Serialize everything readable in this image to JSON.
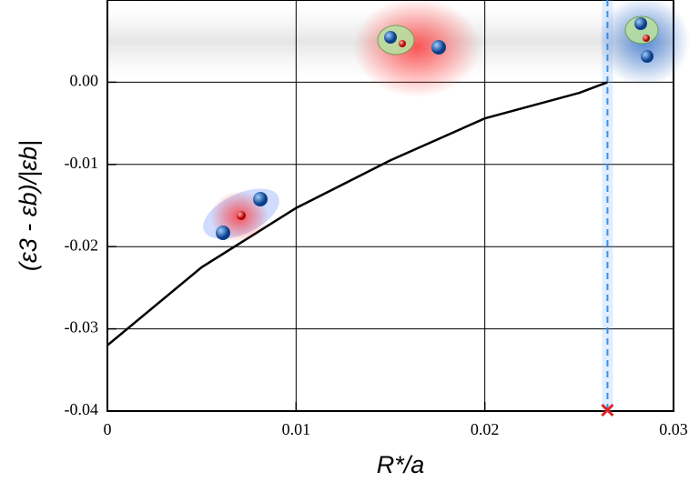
{
  "chart_data": {
    "type": "line",
    "x_label": "R*/a",
    "y_label": "(ε3 - εb)/|εb|",
    "series": [
      {
        "color": "#000000",
        "x": [
          0,
          0.005,
          0.01,
          0.015,
          0.02,
          0.025,
          0.0265
        ],
        "values": [
          -0.032,
          -0.0225,
          -0.0153,
          -0.0095,
          -0.0044,
          -0.0013,
          0
        ]
      }
    ],
    "xlim": [
      0,
      0.03
    ],
    "ylim": [
      -0.04,
      0.01
    ],
    "xticks": [
      0,
      0.01,
      0.02,
      0.03
    ],
    "yticks": [
      {
        "value": -0.04,
        "label": "-0.04"
      },
      {
        "value": -0.03,
        "label": "-0.03"
      },
      {
        "value": -0.02,
        "label": "-0.02"
      },
      {
        "value": -0.01,
        "label": "-0.01"
      },
      {
        "value": 0,
        "label": "0.00"
      }
    ],
    "grid": true,
    "vline_x": 0.0265
  }
}
